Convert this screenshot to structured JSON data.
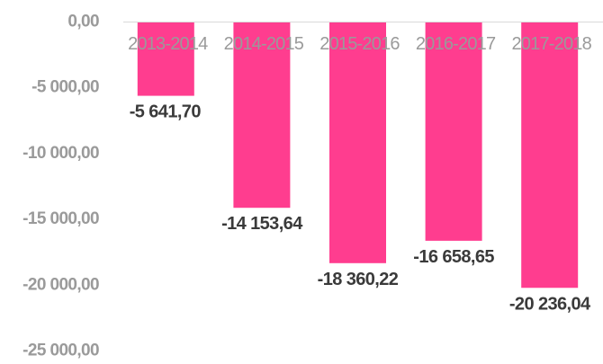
{
  "chart_data": {
    "type": "bar",
    "categories": [
      "2013-2014",
      "2014-2015",
      "2015-2016",
      "2016-2017",
      "2017-2018"
    ],
    "values": [
      -5641.7,
      -14153.64,
      -18360.22,
      -16658.65,
      -20236.04
    ],
    "data_labels": [
      "-5 641,70",
      "-14 153,64",
      "-18 360,22",
      "-16 658,65",
      "-20 236,04"
    ],
    "y_ticks": [
      0,
      -5000,
      -10000,
      -15000,
      -20000,
      -25000
    ],
    "y_tick_labels": [
      "0,00",
      "-5 000,00",
      "-10 000,00",
      "-15 000,00",
      "-20 000,00",
      "-25 000,00"
    ],
    "ylim": [
      -25000,
      0
    ],
    "title": "",
    "xlabel": "",
    "ylabel": "",
    "grid": false,
    "legend": "none",
    "bar_color": "#ff3d8f",
    "axis_line_color": "#d9d9d9",
    "tick_label_color": "#9a9a9a",
    "category_label_color": "#9a9a9a",
    "data_label_color": "#3a3a3a"
  }
}
